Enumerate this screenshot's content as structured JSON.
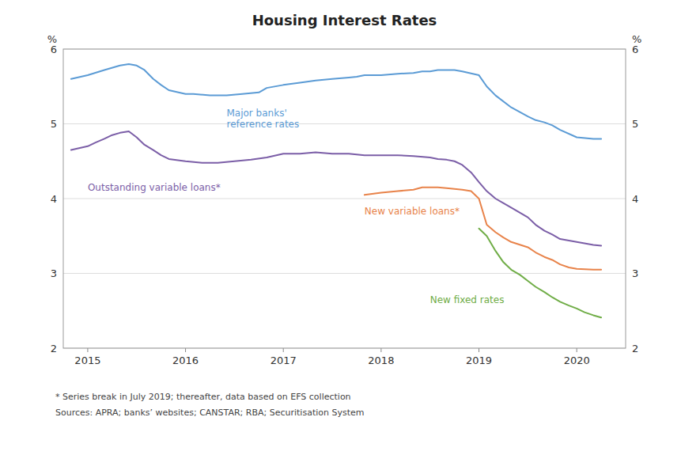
{
  "chart_data": {
    "type": "line",
    "title": "Housing Interest Rates",
    "ylabel": "%",
    "y2label": "%",
    "xlim": [
      2014.75,
      2020.5
    ],
    "xticks": [
      2015,
      2016,
      2017,
      2018,
      2019,
      2020
    ],
    "ylim": [
      2,
      6
    ],
    "yticks": [
      2,
      3,
      4,
      5,
      6
    ],
    "y2lim": [
      2,
      6
    ],
    "y2ticks": [
      2,
      3,
      4,
      5,
      6
    ],
    "grid": true,
    "series": [
      {
        "color": "#5B9BD5",
        "x": [
          2014.83,
          2015.0,
          2015.17,
          2015.33,
          2015.42,
          2015.5,
          2015.58,
          2015.67,
          2015.75,
          2015.83,
          2016.0,
          2016.08,
          2016.25,
          2016.42,
          2016.58,
          2016.75,
          2016.83,
          2017.0,
          2017.17,
          2017.33,
          2017.5,
          2017.67,
          2017.75,
          2017.83,
          2018.0,
          2018.17,
          2018.33,
          2018.42,
          2018.5,
          2018.58,
          2018.67,
          2018.75,
          2018.83,
          2019.0,
          2019.08,
          2019.17,
          2019.33,
          2019.5,
          2019.58,
          2019.67,
          2019.75,
          2019.83,
          2020.0,
          2020.17,
          2020.25
        ],
        "values": [
          5.6,
          5.65,
          5.72,
          5.78,
          5.8,
          5.78,
          5.72,
          5.6,
          5.52,
          5.45,
          5.4,
          5.4,
          5.38,
          5.38,
          5.4,
          5.42,
          5.48,
          5.52,
          5.55,
          5.58,
          5.6,
          5.62,
          5.63,
          5.65,
          5.65,
          5.67,
          5.68,
          5.7,
          5.7,
          5.72,
          5.72,
          5.72,
          5.7,
          5.65,
          5.5,
          5.38,
          5.22,
          5.1,
          5.05,
          5.02,
          4.98,
          4.92,
          4.82,
          4.8,
          4.8
        ]
      },
      {
        "color": "#7B5EA7",
        "x": [
          2014.83,
          2015.0,
          2015.08,
          2015.17,
          2015.25,
          2015.33,
          2015.42,
          2015.5,
          2015.58,
          2015.67,
          2015.75,
          2015.83,
          2016.0,
          2016.17,
          2016.33,
          2016.5,
          2016.67,
          2016.83,
          2017.0,
          2017.17,
          2017.33,
          2017.5,
          2017.67,
          2017.83,
          2018.0,
          2018.17,
          2018.33,
          2018.5,
          2018.58,
          2018.67,
          2018.75,
          2018.83,
          2018.92,
          2019.0,
          2019.08,
          2019.17,
          2019.33,
          2019.5,
          2019.58,
          2019.67,
          2019.75,
          2019.83,
          2020.0,
          2020.17,
          2020.25
        ],
        "values": [
          4.65,
          4.7,
          4.75,
          4.8,
          4.85,
          4.88,
          4.9,
          4.82,
          4.72,
          4.65,
          4.58,
          4.53,
          4.5,
          4.48,
          4.48,
          4.5,
          4.52,
          4.55,
          4.6,
          4.6,
          4.62,
          4.6,
          4.6,
          4.58,
          4.58,
          4.58,
          4.57,
          4.55,
          4.53,
          4.52,
          4.5,
          4.45,
          4.35,
          4.22,
          4.1,
          4.0,
          3.88,
          3.75,
          3.65,
          3.57,
          3.52,
          3.46,
          3.42,
          3.38,
          3.37
        ]
      },
      {
        "color": "#E8834A",
        "x": [
          2017.83,
          2018.0,
          2018.17,
          2018.33,
          2018.42,
          2018.5,
          2018.58,
          2018.67,
          2018.75,
          2018.83,
          2018.92,
          2019.0,
          2019.08,
          2019.17,
          2019.25,
          2019.33,
          2019.5,
          2019.58,
          2019.67,
          2019.75,
          2019.83,
          2019.92,
          2020.0,
          2020.17,
          2020.25
        ],
        "values": [
          4.05,
          4.08,
          4.1,
          4.12,
          4.15,
          4.15,
          4.15,
          4.14,
          4.13,
          4.12,
          4.1,
          4.0,
          3.65,
          3.55,
          3.48,
          3.42,
          3.35,
          3.28,
          3.22,
          3.18,
          3.12,
          3.08,
          3.06,
          3.05,
          3.05
        ]
      },
      {
        "color": "#70AD47",
        "x": [
          2019.0,
          2019.08,
          2019.17,
          2019.25,
          2019.33,
          2019.42,
          2019.5,
          2019.58,
          2019.67,
          2019.75,
          2019.83,
          2019.92,
          2020.0,
          2020.08,
          2020.17,
          2020.25
        ],
        "values": [
          3.6,
          3.5,
          3.3,
          3.15,
          3.05,
          2.98,
          2.9,
          2.82,
          2.75,
          2.68,
          2.62,
          2.57,
          2.53,
          2.48,
          2.44,
          2.41
        ]
      }
    ],
    "annotations": [
      {
        "text": "Major banks'\nreference rates",
        "x": 2016.42,
        "y": 5.22,
        "color": "#5B9BD5"
      },
      {
        "text": "Outstanding variable loans*",
        "x": 2015.0,
        "y": 4.22,
        "color": "#7B5EA7"
      },
      {
        "text": "New variable loans*",
        "x": 2017.83,
        "y": 3.9,
        "color": "#E8834A"
      },
      {
        "text": "New fixed rates",
        "x": 2018.5,
        "y": 2.72,
        "color": "#70AD47"
      }
    ],
    "footnotes": [
      "* Series break in July 2019; thereafter, data based on EFS collection",
      "Sources: APRA; banks’ websites; CANSTAR; RBA; Securitisation System"
    ]
  }
}
